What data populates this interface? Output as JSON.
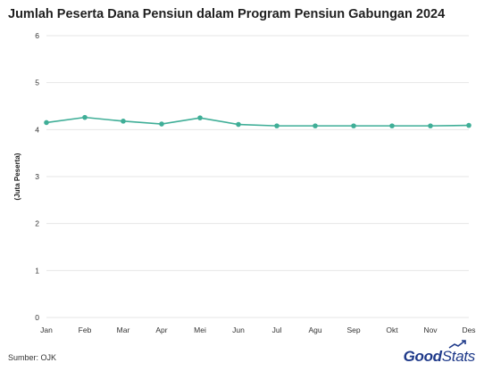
{
  "title": "Jumlah Peserta Dana Pensiun dalam Program Pensiun Gabungan 2024",
  "source": "Sumber: OJK",
  "brand": {
    "part1": "Good",
    "part2": "Stats"
  },
  "colors": {
    "line": "#3fae97",
    "grid": "#e6e6e6",
    "text": "#333333",
    "brand": "#1f3a8a"
  },
  "chart_data": {
    "type": "line",
    "ylabel": "(Juta Peserta)",
    "xlabel": "",
    "ylim": [
      0,
      6
    ],
    "yticks": [
      0,
      1,
      2,
      3,
      4,
      5,
      6
    ],
    "categories": [
      "Jan",
      "Feb",
      "Mar",
      "Apr",
      "Mei",
      "Jun",
      "Jul",
      "Agu",
      "Sep",
      "Okt",
      "Nov",
      "Des"
    ],
    "series": [
      {
        "values": [
          4.15,
          4.26,
          4.18,
          4.12,
          4.25,
          4.11,
          4.08,
          4.08,
          4.08,
          4.08,
          4.08,
          4.09
        ]
      }
    ],
    "grid": "horizontal",
    "legend": "none"
  }
}
